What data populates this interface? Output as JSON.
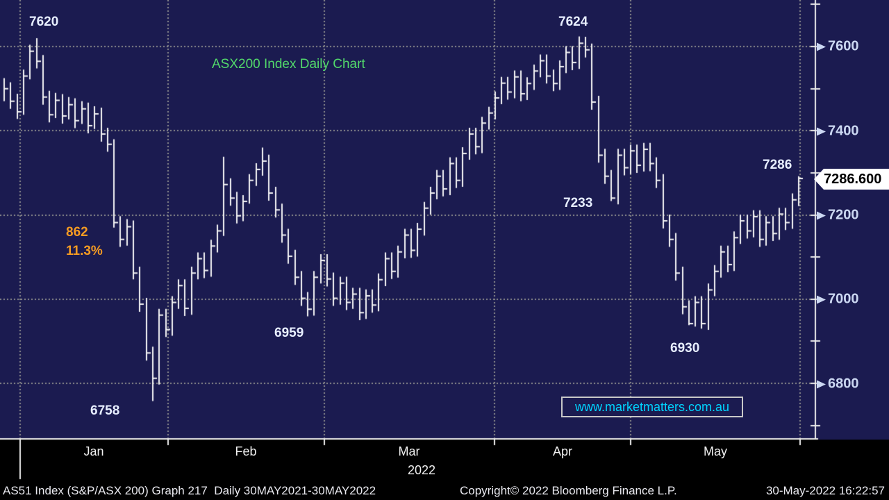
{
  "title": "ASX200 Index Daily Chart",
  "watermark": "www.marketmatters.com.au",
  "last_price_tag": "7286.600",
  "footer": {
    "left": "AS51 Index (S&P/ASX 200) Graph 217  Daily 30MAY2021-30MAY2022",
    "copyright": "Copyright© 2022 Bloomberg Finance L.P.",
    "timestamp": "30-May-2022 16:22:57"
  },
  "chart_data": {
    "type": "bar",
    "subtype": "ohlc-hlc-daily-bars",
    "title": "ASX200 Index Daily Chart",
    "series_name": "AS51 Index (S&P/ASX 200)",
    "period": "Daily 30MAY2021-30MAY2022",
    "last_close": 7286.6,
    "x_axis": {
      "months": [
        "Jan",
        "Feb",
        "Mar",
        "Apr",
        "May"
      ],
      "year": "2022"
    },
    "y_axis": {
      "tick_labels": [
        "7600",
        "7400",
        "7200",
        "7000",
        "6800"
      ],
      "tick_values": [
        7600,
        7400,
        7200,
        7000,
        6800
      ],
      "minor_tick_values": [
        7700,
        7500,
        7300,
        7100,
        6900,
        6700
      ],
      "range": [
        6668,
        7710
      ],
      "grid": "dotted"
    },
    "annotations": {
      "jan_high": "7620",
      "jan_low": "6758",
      "decline_points": "862",
      "decline_pct": "11.3%",
      "feb_low": "6959",
      "apr_high": "7624",
      "apr_low": "7233",
      "may_low": "6930",
      "last_high": "7286"
    },
    "colors": {
      "plot_bg": "#1b1b50",
      "bar": "#f4f4f4",
      "grid": "#8e8e8e",
      "axis": "#ececec",
      "title_green": "#52d96b",
      "annotation_orange": "#f59b22",
      "watermark_cyan": "#00d5ff",
      "axis_label": "#ccd8f2",
      "tag_bg": "#ffffff"
    },
    "bars_hlc": [
      [
        7525,
        7470,
        7500
      ],
      [
        7515,
        7452,
        7470
      ],
      [
        7488,
        7428,
        7445
      ],
      [
        7545,
        7438,
        7530
      ],
      [
        7604,
        7522,
        7589
      ],
      [
        7620,
        7548,
        7565
      ],
      [
        7580,
        7462,
        7480
      ],
      [
        7495,
        7420,
        7438
      ],
      [
        7490,
        7430,
        7472
      ],
      [
        7487,
        7417,
        7435
      ],
      [
        7480,
        7427,
        7462
      ],
      [
        7477,
        7406,
        7424
      ],
      [
        7470,
        7416,
        7452
      ],
      [
        7467,
        7394,
        7412
      ],
      [
        7458,
        7404,
        7440
      ],
      [
        7455,
        7374,
        7392
      ],
      [
        7407,
        7350,
        7368
      ],
      [
        7380,
        7170,
        7182
      ],
      [
        7197,
        7124,
        7142
      ],
      [
        7190,
        7127,
        7172
      ],
      [
        7187,
        7047,
        7062
      ],
      [
        7077,
        6970,
        6988
      ],
      [
        7003,
        6854,
        6872
      ],
      [
        6887,
        6758,
        6812
      ],
      [
        6977,
        6797,
        6962
      ],
      [
        6977,
        6910,
        6928
      ],
      [
        7007,
        6913,
        6992
      ],
      [
        7047,
        6977,
        7032
      ],
      [
        7047,
        6960,
        6978
      ],
      [
        7077,
        6963,
        7062
      ],
      [
        7111,
        7047,
        7096
      ],
      [
        7111,
        7050,
        7068
      ],
      [
        7141,
        7053,
        7126
      ],
      [
        7177,
        7111,
        7162
      ],
      [
        7338,
        7150,
        7272
      ],
      [
        7287,
        7222,
        7240
      ],
      [
        7255,
        7180,
        7198
      ],
      [
        7247,
        7185,
        7232
      ],
      [
        7297,
        7227,
        7282
      ],
      [
        7323,
        7269,
        7308
      ],
      [
        7360,
        7293,
        7328
      ],
      [
        7343,
        7234,
        7252
      ],
      [
        7267,
        7194,
        7212
      ],
      [
        7227,
        7134,
        7152
      ],
      [
        7167,
        7084,
        7102
      ],
      [
        7117,
        7034,
        7052
      ],
      [
        7067,
        6984,
        7002
      ],
      [
        7017,
        6959,
        6976
      ],
      [
        7067,
        6961,
        7052
      ],
      [
        7107,
        7037,
        7092
      ],
      [
        7107,
        7030,
        7048
      ],
      [
        7063,
        6984,
        7002
      ],
      [
        7053,
        6987,
        7038
      ],
      [
        7053,
        6974,
        6992
      ],
      [
        7027,
        6977,
        7012
      ],
      [
        7027,
        6950,
        6968
      ],
      [
        7023,
        6953,
        7008
      ],
      [
        7023,
        6968,
        6986
      ],
      [
        7061,
        6971,
        7046
      ],
      [
        7111,
        7031,
        7096
      ],
      [
        7111,
        7048,
        7066
      ],
      [
        7127,
        7051,
        7112
      ],
      [
        7167,
        7097,
        7152
      ],
      [
        7167,
        7098,
        7116
      ],
      [
        7181,
        7101,
        7166
      ],
      [
        7231,
        7151,
        7216
      ],
      [
        7267,
        7201,
        7252
      ],
      [
        7307,
        7237,
        7292
      ],
      [
        7307,
        7244,
        7262
      ],
      [
        7337,
        7247,
        7322
      ],
      [
        7337,
        7264,
        7282
      ],
      [
        7361,
        7267,
        7346
      ],
      [
        7407,
        7331,
        7392
      ],
      [
        7407,
        7344,
        7362
      ],
      [
        7433,
        7347,
        7418
      ],
      [
        7457,
        7403,
        7442
      ],
      [
        7493,
        7427,
        7478
      ],
      [
        7528,
        7463,
        7513
      ],
      [
        7528,
        7474,
        7492
      ],
      [
        7543,
        7477,
        7528
      ],
      [
        7543,
        7470,
        7488
      ],
      [
        7527,
        7473,
        7512
      ],
      [
        7557,
        7497,
        7542
      ],
      [
        7581,
        7527,
        7566
      ],
      [
        7581,
        7512,
        7530
      ],
      [
        7545,
        7494,
        7512
      ],
      [
        7567,
        7497,
        7552
      ],
      [
        7601,
        7537,
        7586
      ],
      [
        7601,
        7544,
        7562
      ],
      [
        7624,
        7547,
        7608
      ],
      [
        7623,
        7574,
        7592
      ],
      [
        7607,
        7450,
        7468
      ],
      [
        7483,
        7324,
        7342
      ],
      [
        7357,
        7274,
        7292
      ],
      [
        7307,
        7233,
        7240
      ],
      [
        7357,
        7225,
        7342
      ],
      [
        7357,
        7294,
        7312
      ],
      [
        7367,
        7297,
        7352
      ],
      [
        7367,
        7300,
        7318
      ],
      [
        7371,
        7303,
        7356
      ],
      [
        7371,
        7304,
        7322
      ],
      [
        7337,
        7264,
        7282
      ],
      [
        7297,
        7168,
        7186
      ],
      [
        7201,
        7124,
        7142
      ],
      [
        7157,
        7044,
        7062
      ],
      [
        7077,
        6964,
        6982
      ],
      [
        6997,
        6938,
        6942
      ],
      [
        7007,
        6935,
        6992
      ],
      [
        7007,
        6930,
        6942
      ],
      [
        7037,
        6927,
        7022
      ],
      [
        7081,
        7007,
        7066
      ],
      [
        7127,
        7051,
        7112
      ],
      [
        7127,
        7064,
        7082
      ],
      [
        7161,
        7067,
        7146
      ],
      [
        7201,
        7131,
        7186
      ],
      [
        7201,
        7144,
        7162
      ],
      [
        7211,
        7147,
        7196
      ],
      [
        7211,
        7124,
        7142
      ],
      [
        7197,
        7127,
        7182
      ],
      [
        7197,
        7138,
        7156
      ],
      [
        7217,
        7141,
        7202
      ],
      [
        7217,
        7164,
        7182
      ],
      [
        7251,
        7167,
        7236
      ],
      [
        7292,
        7221,
        7286.6
      ]
    ]
  }
}
